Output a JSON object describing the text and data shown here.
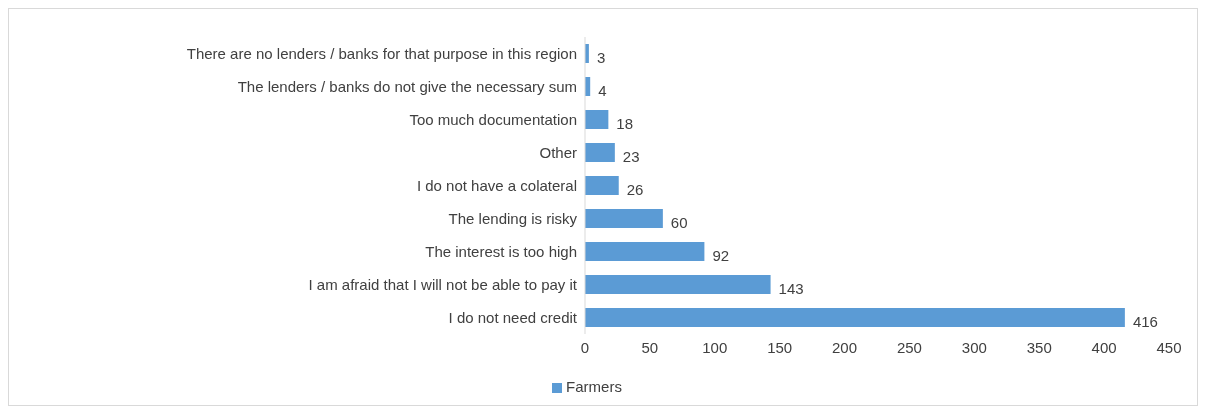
{
  "chart_data": {
    "type": "bar",
    "orientation": "horizontal",
    "categories": [
      "There are no lenders / banks for that purpose in this region",
      "The lenders / banks do not give the necessary sum",
      "Too much documentation",
      "Other",
      "I do not have a colateral",
      "The lending is risky",
      "The interest is too high",
      "I am afraid that I will not be able to pay it",
      "I do not need credit"
    ],
    "series": [
      {
        "name": "Farmers",
        "color": "#5b9bd5",
        "values": [
          3,
          4,
          18,
          23,
          26,
          60,
          92,
          143,
          416
        ]
      }
    ],
    "xlim": [
      0,
      450
    ],
    "xticks": [
      0,
      50,
      100,
      150,
      200,
      250,
      300,
      350,
      400,
      450
    ],
    "grid": false,
    "legend": "bottom",
    "data_labels": true
  }
}
